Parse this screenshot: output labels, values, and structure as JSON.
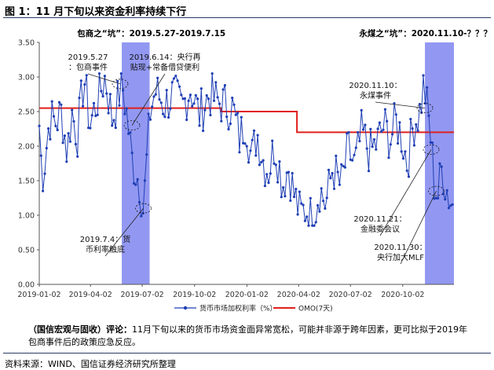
{
  "figure": {
    "title": "图 1：11 月下旬以来资金利率持续下行",
    "comment_label": "（国信宏观与固收）评论：",
    "comment_text": "11月下旬以来的货币市场资金面异常宽松，可能并非源于跨年因素，更可比拟于2019年包商事件后的政策应急反应。",
    "source": "资料来源：WIND、国信证券经济研究所整理"
  },
  "colors": {
    "series_blue": "#1f3fb5",
    "series_red": "#e0201c",
    "shade": "#7f86ee",
    "rule": "#2b3a66"
  },
  "chart_data": {
    "type": "line",
    "ylim": [
      0,
      3.5
    ],
    "yticks": [
      "0.00",
      "0.50",
      "1.00",
      "1.50",
      "2.00",
      "2.50",
      "3.00",
      "3.50"
    ],
    "xlim": [
      "2019-01-02",
      "2020-12-31"
    ],
    "xticks": [
      "2019-01-02",
      "2019-04-02",
      "2019-07-02",
      "2019-10-02",
      "2020-01-02",
      "2020-04-02",
      "2020-07-02",
      "2020-10-02"
    ],
    "legend": {
      "placement": "bottom",
      "items": [
        "货币市场加权利率（%）",
        "OMO(7天)"
      ]
    },
    "shaded_periods": [
      {
        "label": "包商之“坑”：2019.5.27-2019.7.15",
        "start": "2019-05-27",
        "end": "2019-07-15"
      },
      {
        "label": "永煤之“坑”：2020.11.10-？？？",
        "start": "2020-11-10",
        "end": "2020-12-31"
      }
    ],
    "annotations": [
      {
        "text": [
          "2019.5.27",
          "：包商事件"
        ],
        "date": "2019-05-27"
      },
      {
        "text": [
          "2019.6.14：央行再",
          "贴现+常备借贷便利"
        ],
        "date": "2019-06-14"
      },
      {
        "text": [
          "2019.7.4：货",
          "币利率触底"
        ],
        "date": "2019-07-04"
      },
      {
        "text": [
          "2020.11.10：",
          "永煤事件"
        ],
        "date": "2020-11-10"
      },
      {
        "text": [
          "2020.11.21：",
          "金融委会议"
        ],
        "date": "2020-11-21"
      },
      {
        "text": [
          "2020.11.30：",
          "央行加大MLF"
        ],
        "date": "2020-11-30"
      }
    ],
    "series": [
      {
        "name": "OMO(7天)",
        "type": "step",
        "points": [
          [
            "2019-01-02",
            2.55
          ],
          [
            "2019-11-18",
            2.55
          ],
          [
            "2019-11-18",
            2.5
          ],
          [
            "2020-03-30",
            2.5
          ],
          [
            "2020-03-30",
            2.2
          ],
          [
            "2020-12-31",
            2.2
          ]
        ]
      },
      {
        "name": "货币市场加权利率（%）",
        "type": "line",
        "anchors": [
          [
            "2019-01-02",
            2.3
          ],
          [
            "2019-01-07",
            1.55
          ],
          [
            "2019-01-12",
            1.8
          ],
          [
            "2019-01-20",
            2.4
          ],
          [
            "2019-02-01",
            2.35
          ],
          [
            "2019-02-10",
            2.5
          ],
          [
            "2019-02-20",
            1.9
          ],
          [
            "2019-02-28",
            2.5
          ],
          [
            "2019-03-10",
            2.15
          ],
          [
            "2019-03-22",
            3.0
          ],
          [
            "2019-04-01",
            2.3
          ],
          [
            "2019-04-15",
            2.7
          ],
          [
            "2019-04-28",
            3.0
          ],
          [
            "2019-05-10",
            2.4
          ],
          [
            "2019-05-20",
            2.65
          ],
          [
            "2019-05-27",
            2.95
          ],
          [
            "2019-06-05",
            2.45
          ],
          [
            "2019-06-14",
            1.8
          ],
          [
            "2019-06-20",
            1.65
          ],
          [
            "2019-06-28",
            1.45
          ],
          [
            "2019-07-04",
            1.05
          ],
          [
            "2019-07-10",
            1.8
          ],
          [
            "2019-07-16",
            2.5
          ],
          [
            "2019-07-25",
            2.8
          ],
          [
            "2019-08-10",
            2.6
          ],
          [
            "2019-08-25",
            2.75
          ],
          [
            "2019-09-10",
            2.55
          ],
          [
            "2019-09-25",
            2.85
          ],
          [
            "2019-10-10",
            2.45
          ],
          [
            "2019-10-28",
            2.75
          ],
          [
            "2019-11-10",
            2.65
          ],
          [
            "2019-11-25",
            2.6
          ],
          [
            "2019-12-08",
            2.55
          ],
          [
            "2019-12-20",
            2.1
          ],
          [
            "2019-12-31",
            2.4
          ],
          [
            "2020-01-10",
            1.8
          ],
          [
            "2020-01-20",
            2.2
          ],
          [
            "2020-02-01",
            1.75
          ],
          [
            "2020-02-10",
            1.65
          ],
          [
            "2020-02-20",
            2.05
          ],
          [
            "2020-03-05",
            1.45
          ],
          [
            "2020-03-15",
            1.7
          ],
          [
            "2020-03-25",
            1.3
          ],
          [
            "2020-04-05",
            1.0
          ],
          [
            "2020-04-15",
            1.1
          ],
          [
            "2020-04-28",
            0.9
          ],
          [
            "2020-05-08",
            1.4
          ],
          [
            "2020-05-20",
            1.15
          ],
          [
            "2020-06-01",
            1.7
          ],
          [
            "2020-06-15",
            1.4
          ],
          [
            "2020-06-28",
            1.95
          ],
          [
            "2020-07-10",
            1.7
          ],
          [
            "2020-07-22",
            2.2
          ],
          [
            "2020-08-05",
            1.9
          ],
          [
            "2020-08-18",
            2.05
          ],
          [
            "2020-08-30",
            2.3
          ],
          [
            "2020-09-10",
            2.1
          ],
          [
            "2020-09-20",
            2.35
          ],
          [
            "2020-09-30",
            2.15
          ],
          [
            "2020-10-10",
            1.75
          ],
          [
            "2020-10-20",
            2.3
          ],
          [
            "2020-11-01",
            2.5
          ],
          [
            "2020-11-08",
            2.9
          ],
          [
            "2020-11-13",
            2.6
          ],
          [
            "2020-11-18",
            2.3
          ],
          [
            "2020-11-22",
            1.95
          ],
          [
            "2020-11-27",
            1.4
          ],
          [
            "2020-12-03",
            1.3
          ],
          [
            "2020-12-10",
            1.7
          ],
          [
            "2020-12-16",
            1.45
          ],
          [
            "2020-12-23",
            1.25
          ],
          [
            "2020-12-31",
            1.1
          ]
        ]
      }
    ]
  }
}
